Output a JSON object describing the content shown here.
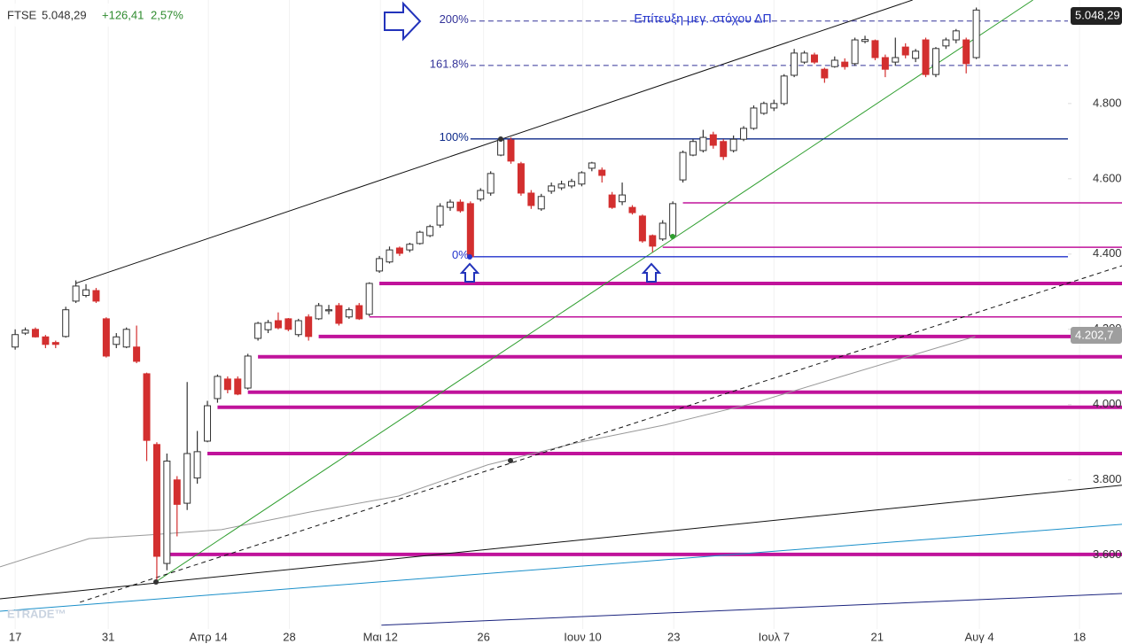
{
  "header": {
    "symbol": "FTSE",
    "price": "5.048,29",
    "change": "+126,41",
    "change_pct": "2,57%"
  },
  "chart_data": {
    "type": "candlestick",
    "annotation": "Επίτευξη μεγ. στόχου ΔΠ",
    "watermark": "ETRADE™",
    "price_tag": "5.048,29",
    "ma_tag": "4.202,7",
    "xlim": [
      -1.5,
      109.4
    ],
    "ylim": [
      3404,
      5075
    ],
    "xticks": [
      {
        "value": 0,
        "label": "17"
      },
      {
        "value": 9.2,
        "label": "31"
      },
      {
        "value": 19.1,
        "label": "Απρ 14"
      },
      {
        "value": 27.1,
        "label": "28"
      },
      {
        "value": 36.1,
        "label": "Μαι 12"
      },
      {
        "value": 46.3,
        "label": "26"
      },
      {
        "value": 56.1,
        "label": "Ιουν 10"
      },
      {
        "value": 65.1,
        "label": "23"
      },
      {
        "value": 75,
        "label": "Ιουλ 7"
      },
      {
        "value": 85.2,
        "label": "21"
      },
      {
        "value": 95.3,
        "label": "Αυγ 4"
      },
      {
        "value": 105.2,
        "label": "18"
      }
    ],
    "yticks": [
      {
        "value": 4800,
        "label": "4.800"
      },
      {
        "value": 4600,
        "label": "4.600"
      },
      {
        "value": 4400,
        "label": "4.400"
      },
      {
        "value": 4200,
        "label": "4.200"
      },
      {
        "value": 4000,
        "label": "4.000"
      },
      {
        "value": 3800,
        "label": "3.800"
      },
      {
        "value": 3600,
        "label": "3.600"
      }
    ],
    "up_color": "#ffffff",
    "down_color": "#d32f2f",
    "x": [
      0,
      1,
      2,
      3,
      4,
      5,
      6,
      7,
      8,
      9,
      10,
      11,
      12,
      13,
      14,
      15,
      16,
      17,
      18,
      19,
      20,
      21,
      22,
      23,
      24,
      25,
      26,
      27,
      28,
      29,
      30,
      31,
      32,
      33,
      34,
      35,
      36,
      37,
      38,
      39,
      40,
      41,
      42,
      43,
      44,
      45,
      46,
      47,
      48,
      49,
      50,
      51,
      52,
      53,
      54,
      55,
      56,
      57,
      58,
      59,
      60,
      61,
      62,
      63,
      64,
      65,
      66,
      67,
      68,
      69,
      70,
      71,
      72,
      73,
      74,
      75,
      76,
      77,
      78,
      79,
      80,
      81,
      82,
      83,
      84,
      85,
      86,
      87,
      88,
      89,
      90,
      91,
      92,
      93,
      94,
      95
    ],
    "open": [
      4153,
      4190,
      4200,
      4180,
      4165,
      4181,
      4275,
      4290,
      4303,
      4228,
      4160,
      4153,
      4153,
      4082,
      3894,
      3578,
      3800,
      3738,
      3805,
      3903,
      4016,
      4068,
      4068,
      4044,
      4176,
      4199,
      4223,
      4228,
      4186,
      4233,
      4228,
      4250,
      4263,
      4233,
      4263,
      4240,
      4355,
      4379,
      4416,
      4411,
      4428,
      4449,
      4477,
      4524,
      4538,
      4534,
      4546,
      4562,
      4663,
      4703,
      4640,
      4562,
      4520,
      4567,
      4576,
      4581,
      4586,
      4628,
      4623,
      4557,
      4539,
      4524,
      4501,
      4449,
      4440,
      4449,
      4597,
      4663,
      4675,
      4717,
      4699,
      4675,
      4705,
      4734,
      4774,
      4788,
      4800,
      4875,
      4910,
      4929,
      4891,
      4898,
      4910,
      4906,
      4965,
      4967,
      4922,
      4910,
      4950,
      4920,
      4969,
      4877,
      4953,
      4969,
      4969,
      4922
    ],
    "high": [
      4200,
      4205,
      4205,
      4185,
      4170,
      4260,
      4330,
      4320,
      4310,
      4232,
      4190,
      4205,
      4210,
      4085,
      3900,
      3870,
      3810,
      4060,
      3930,
      4010,
      4080,
      4075,
      4075,
      4135,
      4220,
      4225,
      4245,
      4230,
      4228,
      4240,
      4270,
      4265,
      4270,
      4258,
      4270,
      4325,
      4395,
      4420,
      4420,
      4430,
      4462,
      4478,
      4535,
      4545,
      4545,
      4540,
      4575,
      4620,
      4710,
      4710,
      4645,
      4570,
      4560,
      4590,
      4595,
      4600,
      4620,
      4645,
      4630,
      4565,
      4590,
      4530,
      4505,
      4452,
      4490,
      4540,
      4675,
      4705,
      4730,
      4725,
      4705,
      4715,
      4740,
      4795,
      4805,
      4810,
      4878,
      4945,
      4940,
      4935,
      4895,
      4925,
      4920,
      4975,
      4980,
      4970,
      4930,
      4975,
      4960,
      4945,
      4975,
      4950,
      4975,
      4998,
      4975,
      5055
    ],
    "low": [
      4146,
      4185,
      4178,
      4150,
      4150,
      4178,
      4270,
      4285,
      4270,
      4125,
      4150,
      4150,
      4110,
      3850,
      3530,
      3560,
      3650,
      3720,
      3790,
      3900,
      4005,
      4030,
      4025,
      4040,
      4170,
      4190,
      4200,
      4195,
      4180,
      4170,
      4225,
      4240,
      4210,
      4228,
      4225,
      4235,
      4350,
      4375,
      4395,
      4405,
      4425,
      4445,
      4470,
      4515,
      4510,
      4390,
      4540,
      4555,
      4660,
      4640,
      4555,
      4520,
      4515,
      4560,
      4570,
      4575,
      4580,
      4620,
      4590,
      4520,
      4530,
      4505,
      4430,
      4405,
      4435,
      4445,
      4590,
      4660,
      4670,
      4680,
      4650,
      4670,
      4700,
      4730,
      4770,
      4780,
      4795,
      4870,
      4905,
      4905,
      4855,
      4895,
      4890,
      4900,
      4960,
      4915,
      4870,
      4900,
      4920,
      4910,
      4870,
      4870,
      4945,
      4960,
      4880,
      4918
    ],
    "close": [
      4186,
      4198,
      4180,
      4160,
      4160,
      4252,
      4315,
      4305,
      4275,
      4129,
      4180,
      4200,
      4115,
      3905,
      3597,
      3850,
      3735,
      3870,
      3875,
      3997,
      4075,
      4040,
      4028,
      4129,
      4216,
      4218,
      4204,
      4200,
      4223,
      4181,
      4263,
      4252,
      4216,
      4252,
      4228,
      4322,
      4388,
      4411,
      4402,
      4426,
      4458,
      4473,
      4527,
      4538,
      4515,
      4393,
      4569,
      4614,
      4703,
      4647,
      4562,
      4529,
      4553,
      4581,
      4586,
      4593,
      4616,
      4642,
      4609,
      4524,
      4557,
      4510,
      4435,
      4421,
      4482,
      4534,
      4670,
      4699,
      4710,
      4689,
      4659,
      4705,
      4734,
      4788,
      4800,
      4800,
      4873,
      4934,
      4934,
      4910,
      4868,
      4915,
      4898,
      4969,
      4970,
      4922,
      4891,
      4922,
      4929,
      4939,
      4877,
      4946,
      4969,
      4993,
      4906,
      5048.29
    ],
    "moving_average": {
      "color": "#999999",
      "x": [
        -1.5,
        7.3,
        13.4,
        20.4,
        29.2,
        37.9,
        46.7,
        55.4,
        64.2,
        73.0,
        81.7,
        90.5,
        94.9
      ],
      "values": [
        3569,
        3644,
        3654,
        3668,
        3715,
        3757,
        3840,
        3898,
        3946,
        4004,
        4075,
        4146,
        4181
      ]
    },
    "trendlines": [
      {
        "color": "#111111",
        "dashed": false,
        "x": [
          5.95,
          88.7
        ],
        "values": [
          4322,
          5075
        ]
      },
      {
        "color": "#2e9e2e",
        "dashed": false,
        "x": [
          13.9,
          100.6
        ],
        "values": [
          3529,
          5075
        ]
      },
      {
        "color": "#111111",
        "dashed": true,
        "x": [
          6.4,
          109.4
        ],
        "values": [
          3475,
          4369
        ]
      },
      {
        "color": "#111111",
        "dashed": false,
        "x": [
          -1.5,
          109.4
        ],
        "values": [
          3484,
          3786
        ]
      },
      {
        "color": "#1a8fc9",
        "dashed": false,
        "x": [
          -1.5,
          109.4
        ],
        "values": [
          3451,
          3682
        ]
      },
      {
        "color": "#1a237e",
        "dashed": false,
        "x": [
          36.2,
          109.4
        ],
        "values": [
          3414,
          3498
        ]
      }
    ],
    "fib_levels": [
      {
        "label": "200%",
        "value": 5019,
        "x": 45,
        "color": "#333399",
        "dashed": true
      },
      {
        "label": "161.8%",
        "value": 4901,
        "x": 45,
        "color": "#333399",
        "dashed": true
      },
      {
        "label": "100%",
        "value": 4706,
        "x": 45,
        "color": "#0d2a8a",
        "dashed": false
      },
      {
        "label": "0%",
        "value": 4393,
        "x": 45,
        "color": "#2233cc",
        "dashed": false
      }
    ],
    "levels": {
      "color": "#c0139b",
      "items": [
        {
          "value": 4536,
          "x": 66,
          "thick": false
        },
        {
          "value": 4418,
          "x": 64,
          "thick": false
        },
        {
          "value": 4322,
          "x": 36,
          "thick": true
        },
        {
          "value": 4233,
          "x": 35,
          "thick": false
        },
        {
          "value": 4181,
          "x": 30,
          "thick": true
        },
        {
          "value": 4127,
          "x": 24,
          "thick": true
        },
        {
          "value": 4033,
          "x": 23,
          "thick": true
        },
        {
          "value": 3993,
          "x": 20,
          "thick": true
        },
        {
          "value": 3870,
          "x": 19,
          "thick": true
        },
        {
          "value": 3602,
          "x": 15,
          "thick": true
        }
      ]
    }
  }
}
